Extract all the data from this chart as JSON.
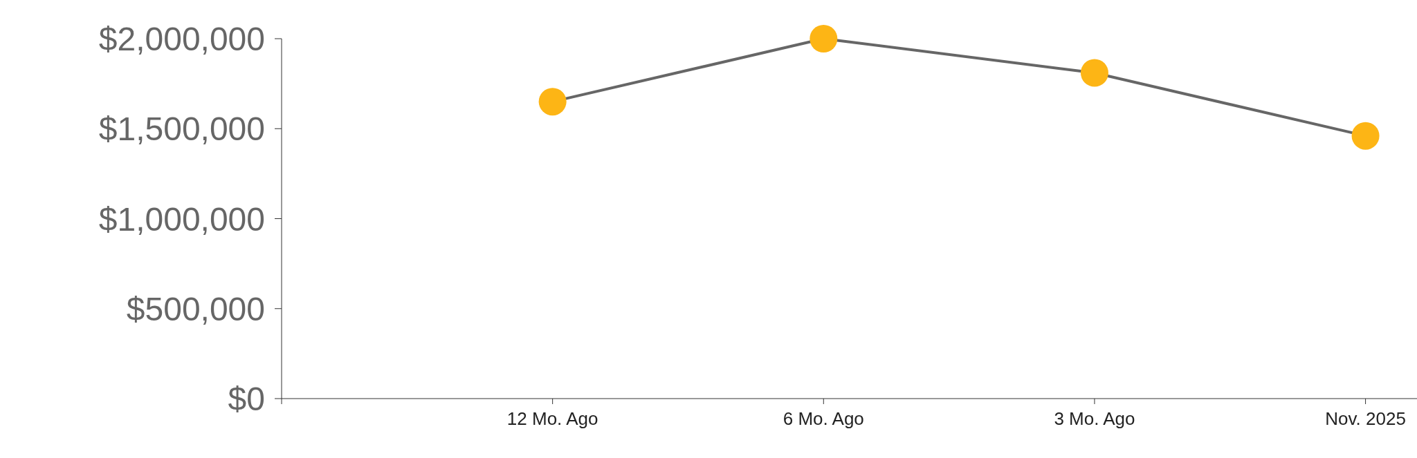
{
  "chart_data": {
    "type": "line",
    "categories": [
      null,
      "12 Mo. Ago",
      "6 Mo. Ago",
      "3 Mo. Ago",
      "Nov. 2025"
    ],
    "series": [
      {
        "color": "#666666",
        "colors": [
          null,
          "#fdb515",
          "#fdb515",
          "#fdb515",
          "#fdb515"
        ],
        "values": [
          null,
          1650000,
          2000000,
          1810000,
          1460000
        ]
      }
    ],
    "ylim": [
      0,
      2000000
    ],
    "yticks": [
      {
        "value": 0,
        "label": "$0"
      },
      {
        "value": 500000,
        "label": "$500,000"
      },
      {
        "value": 1000000,
        "label": "$1,000,000"
      },
      {
        "value": 1500000,
        "label": "$1,500,000"
      },
      {
        "value": 2000000,
        "label": "$2,000,000"
      }
    ],
    "grid": false,
    "legend": false,
    "marker": "circle",
    "line_style": "solid"
  }
}
